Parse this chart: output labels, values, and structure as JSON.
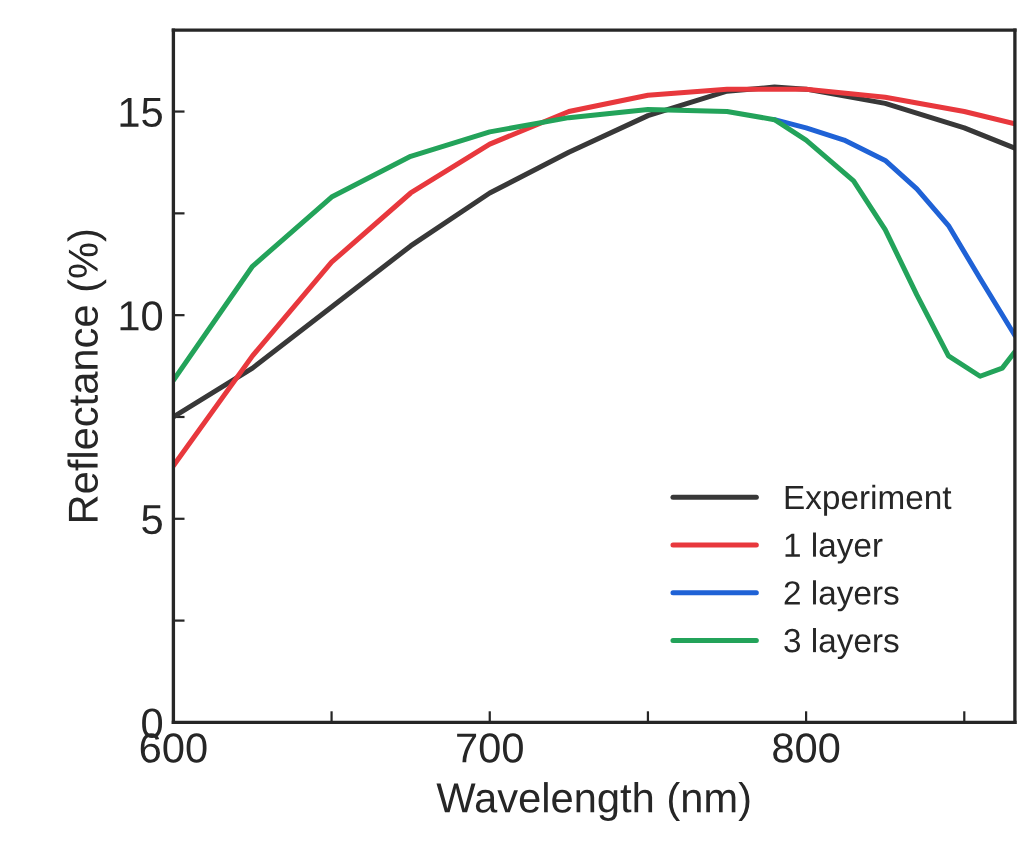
{
  "chart_data": {
    "type": "line",
    "xlabel": "Wavelength (nm)",
    "ylabel": "Reflectance (%)",
    "xlim": [
      600,
      866
    ],
    "xticks": [
      600,
      {
        "value": 650,
        "label": null
      },
      700,
      {
        "value": 750,
        "label": null
      },
      800,
      {
        "value": 850,
        "label": null
      }
    ],
    "ylim": [
      0,
      17
    ],
    "yticks": [
      0,
      {
        "value": 2.5,
        "label": null
      },
      5,
      {
        "value": 7.5,
        "label": null
      },
      10,
      {
        "value": 12.5,
        "label": null
      },
      15
    ],
    "grid": false,
    "legend": "lower right",
    "marker": "none",
    "line_style": "solid",
    "series": [
      {
        "name": "Experiment",
        "color": "#383838",
        "x": [
          600,
          625,
          650,
          675,
          700,
          725,
          750,
          775,
          790,
          800,
          825,
          850,
          866
        ],
        "values": [
          7.5,
          8.7,
          10.2,
          11.7,
          13.0,
          14.0,
          14.9,
          15.5,
          15.6,
          15.55,
          15.2,
          14.6,
          14.1
        ]
      },
      {
        "name": "1 layer",
        "color": "#e8383d",
        "x": [
          600,
          625,
          650,
          675,
          700,
          725,
          750,
          775,
          800,
          825,
          850,
          866
        ],
        "values": [
          6.3,
          9.0,
          11.3,
          13.0,
          14.2,
          15.0,
          15.4,
          15.55,
          15.55,
          15.35,
          15.0,
          14.7
        ]
      },
      {
        "name": "2 layers",
        "color": "#1f62d6",
        "x": [
          790,
          800,
          812,
          825,
          835,
          845,
          855,
          866
        ],
        "values": [
          14.8,
          14.6,
          14.3,
          13.8,
          13.1,
          12.2,
          10.9,
          9.5
        ]
      },
      {
        "name": "3 layers",
        "color": "#23a35a",
        "x": [
          600,
          625,
          650,
          675,
          700,
          725,
          750,
          775,
          790,
          800,
          815,
          825,
          835,
          845,
          855,
          862,
          866
        ],
        "values": [
          8.4,
          11.2,
          12.9,
          13.9,
          14.5,
          14.85,
          15.05,
          15.0,
          14.8,
          14.3,
          13.3,
          12.1,
          10.5,
          9.0,
          8.5,
          8.7,
          9.1
        ]
      }
    ]
  }
}
